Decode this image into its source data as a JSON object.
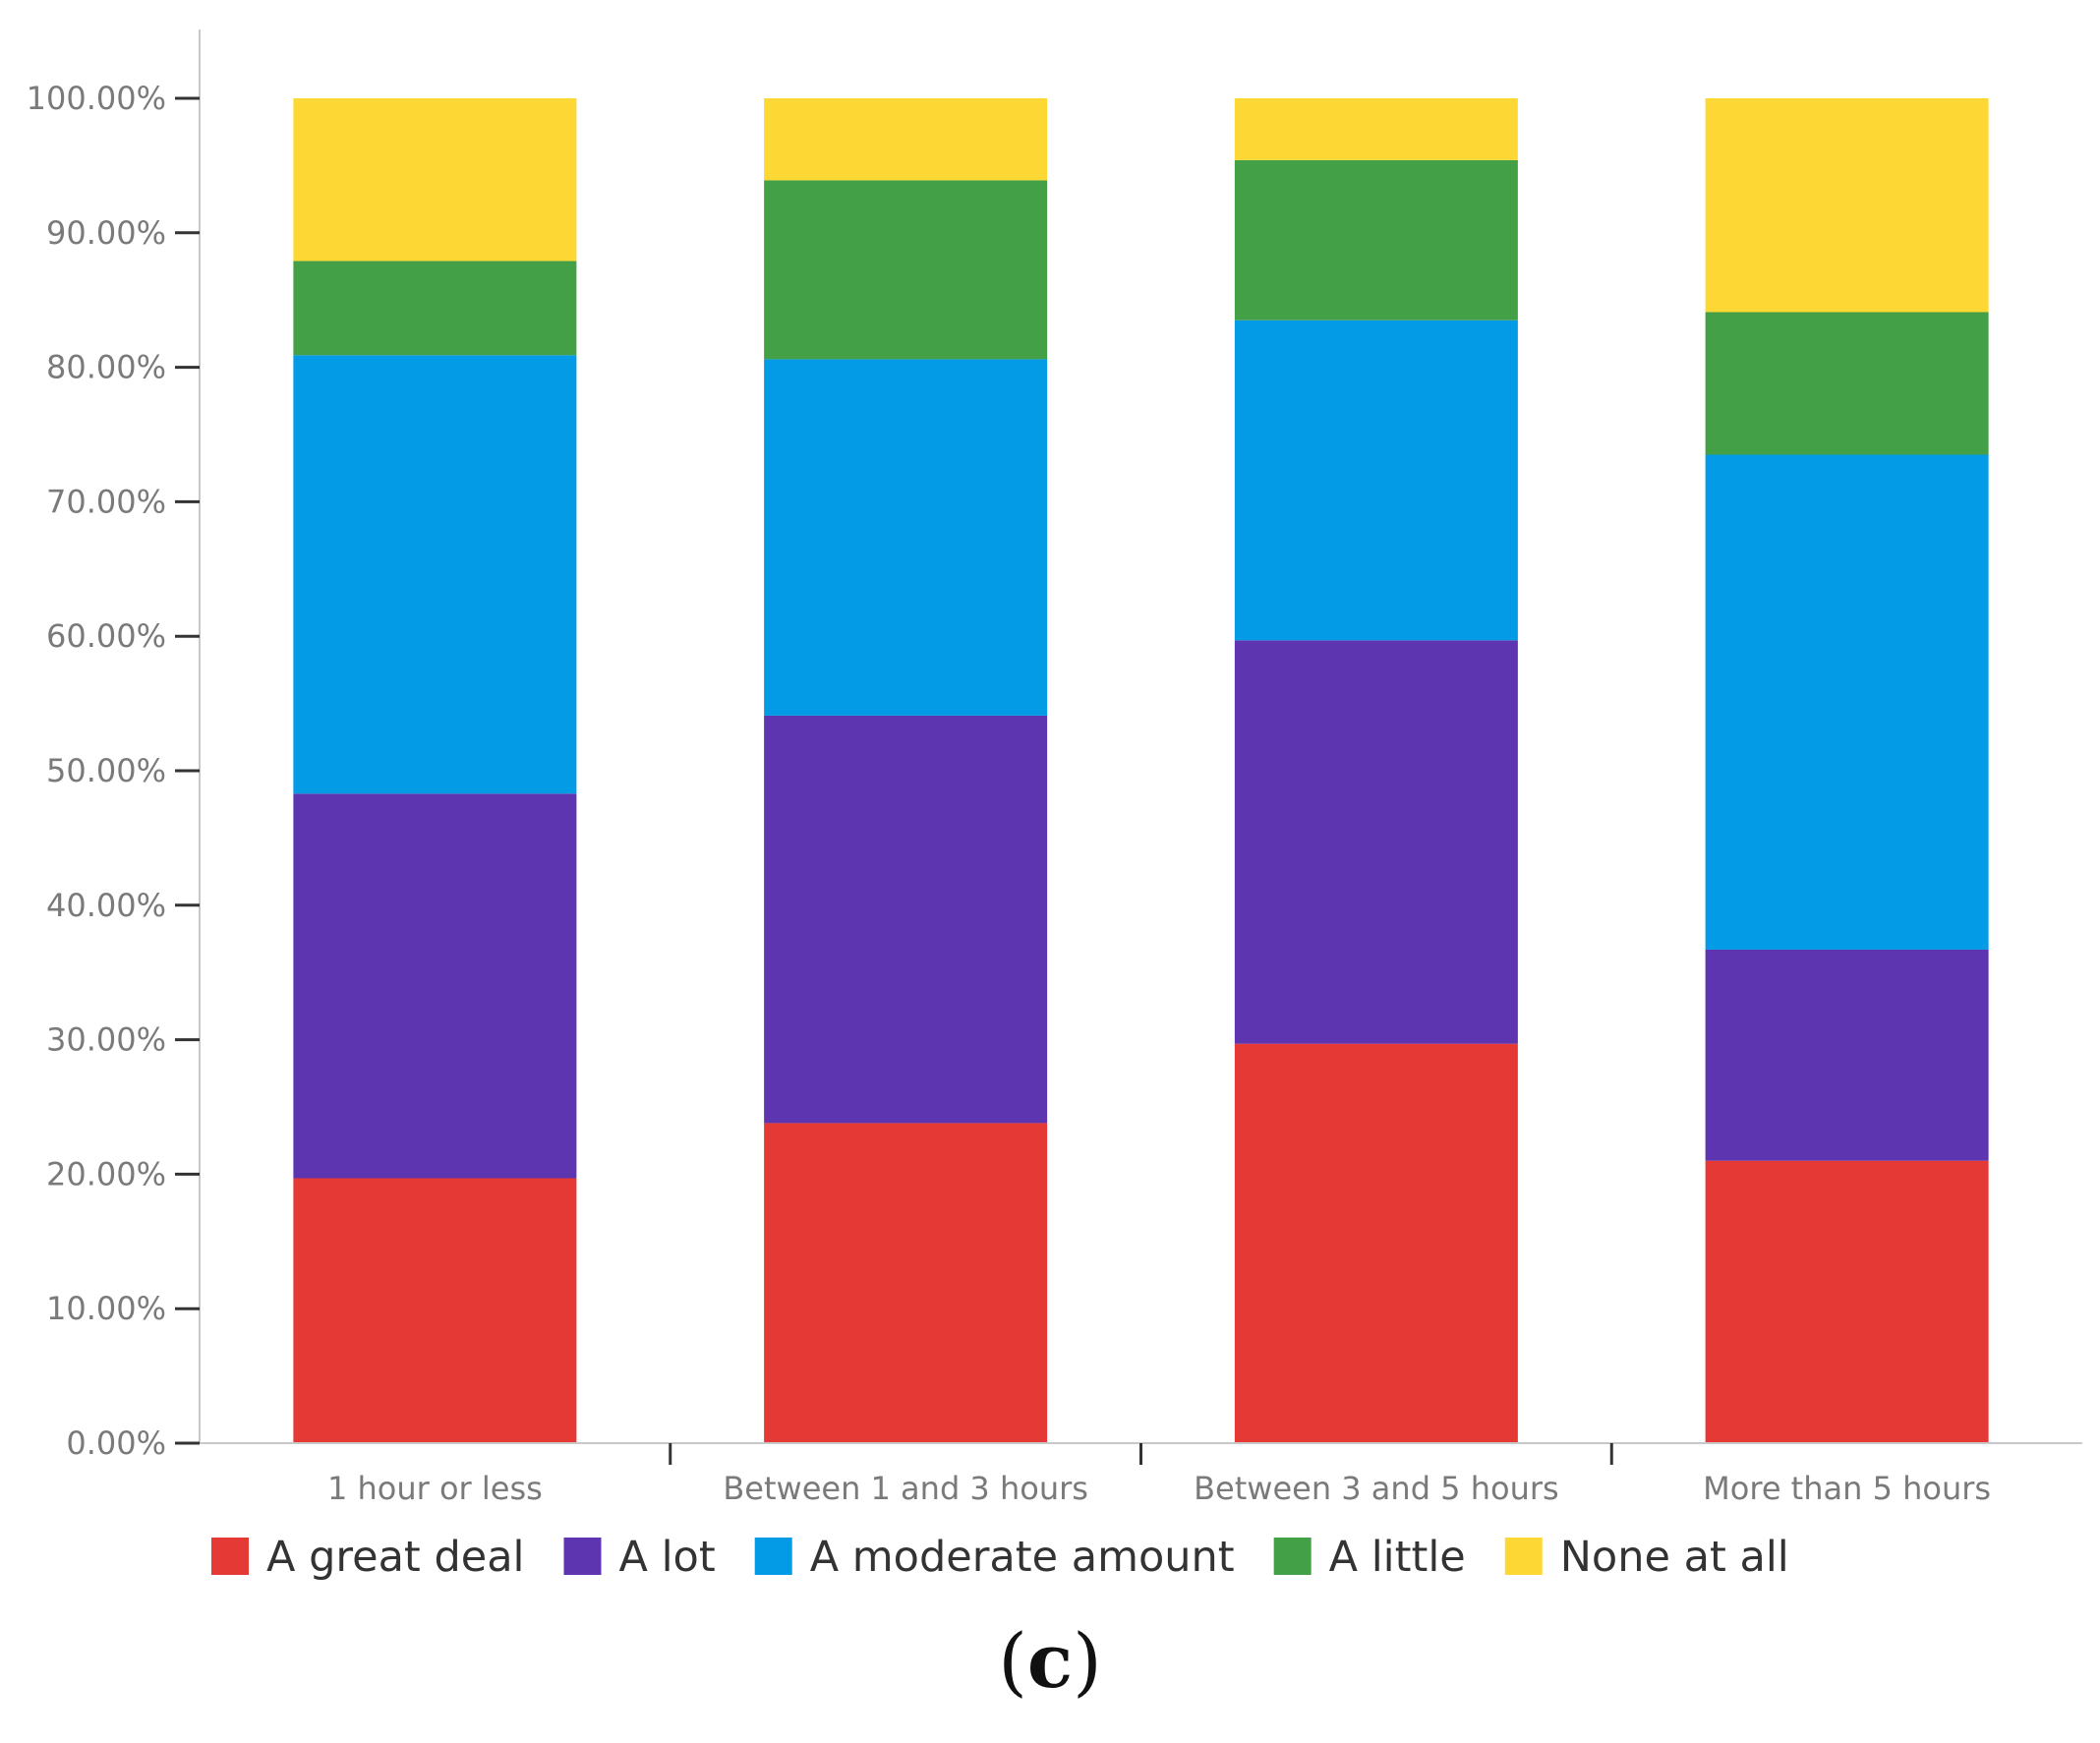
{
  "chart_data": {
    "type": "bar",
    "stacked": true,
    "title": "",
    "xlabel": "",
    "ylabel": "",
    "ylim": [
      0,
      100
    ],
    "yticks": [
      "0.00%",
      "10.00%",
      "20.00%",
      "30.00%",
      "40.00%",
      "50.00%",
      "60.00%",
      "70.00%",
      "80.00%",
      "90.00%",
      "100.00%"
    ],
    "categories": [
      "1 hour or less",
      "Between 1 and 3 hours",
      "Between 3 and 5 hours",
      "More than 5 hours"
    ],
    "series": [
      {
        "name": "A great deal",
        "color": "#e53935",
        "values": [
          19.7,
          23.8,
          29.7,
          21.0
        ]
      },
      {
        "name": "A lot",
        "color": "#5e35b1",
        "values": [
          28.6,
          30.3,
          30.0,
          15.7
        ]
      },
      {
        "name": "A moderate amount",
        "color": "#039be5",
        "values": [
          32.6,
          26.5,
          23.8,
          36.8
        ]
      },
      {
        "name": "A little",
        "color": "#43a047",
        "values": [
          7.0,
          13.3,
          11.9,
          10.6
        ]
      },
      {
        "name": "None at all",
        "color": "#fdd835",
        "values": [
          12.1,
          6.1,
          4.6,
          15.9
        ]
      }
    ],
    "legend_position": "bottom"
  },
  "caption": {
    "open": "(",
    "letter": "c",
    "close": ")"
  }
}
